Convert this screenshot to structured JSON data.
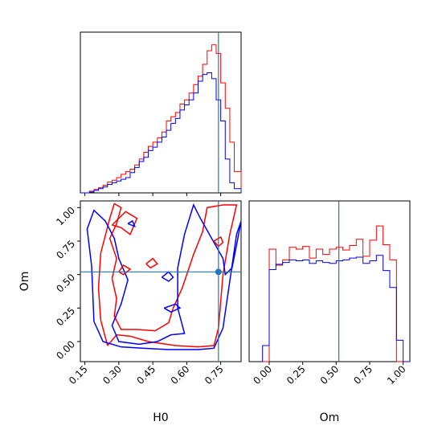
{
  "chart_data": {
    "type": "corner",
    "parameters": [
      "H0",
      "Om"
    ],
    "colors": {
      "red": "#ff0000",
      "blue": "#0000ff",
      "truth": "#1f77b4"
    },
    "truth": {
      "H0": 0.74,
      "Om": 0.52
    },
    "panels": {
      "h0_hist": {
        "type": "histogram",
        "xlim": [
          0.13,
          0.84
        ],
        "bin_edges": [
          0.13,
          0.15,
          0.17,
          0.19,
          0.21,
          0.23,
          0.25,
          0.27,
          0.29,
          0.31,
          0.33,
          0.35,
          0.37,
          0.39,
          0.41,
          0.43,
          0.45,
          0.47,
          0.49,
          0.51,
          0.53,
          0.55,
          0.57,
          0.59,
          0.61,
          0.63,
          0.65,
          0.67,
          0.69,
          0.71,
          0.73,
          0.75,
          0.77,
          0.79,
          0.81,
          0.84
        ],
        "ylim": [
          0,
          190
        ],
        "series": [
          {
            "color": "red",
            "counts": [
              0,
              0,
              2,
              4,
              6,
              9,
              13,
              15,
              18,
              22,
              25,
              28,
              33,
              40,
              48,
              55,
              60,
              65,
              72,
              85,
              90,
              95,
              105,
              110,
              118,
              128,
              138,
              152,
              168,
              175,
              165,
              130,
              100,
              60,
              25
            ]
          },
          {
            "color": "blue",
            "counts": [
              0,
              0,
              1,
              3,
              5,
              7,
              10,
              12,
              14,
              16,
              18,
              24,
              30,
              37,
              42,
              50,
              54,
              60,
              66,
              74,
              82,
              88,
              98,
              104,
              110,
              118,
              132,
              140,
              142,
              135,
              110,
              85,
              40,
              12,
              5
            ]
          }
        ]
      },
      "om_hist": {
        "type": "histogram",
        "xlim": [
          -0.15,
          1.05
        ],
        "bin_edges": [
          -0.05,
          0.0,
          0.05,
          0.1,
          0.15,
          0.2,
          0.25,
          0.3,
          0.35,
          0.4,
          0.45,
          0.5,
          0.55,
          0.6,
          0.65,
          0.7,
          0.75,
          0.8,
          0.85,
          0.9,
          0.95,
          1.0,
          1.05
        ],
        "ylim": [
          0,
          180
        ],
        "series": [
          {
            "color": "red",
            "counts": [
              0,
              126,
              108,
              114,
              128,
              126,
              129,
              116,
              126,
              120,
              126,
              128,
              125,
              130,
              137,
              118,
              136,
              152,
              131,
              114,
              0,
              0
            ]
          },
          {
            "color": "blue",
            "counts": [
              18,
              103,
              109,
              111,
              114,
              113,
              114,
              110,
              113,
              111,
              110,
              113,
              114,
              116,
              117,
              110,
              113,
              119,
              102,
              83,
              24,
              0
            ]
          }
        ]
      },
      "joint": {
        "type": "contour",
        "xlabel": "H0",
        "ylabel": "Om",
        "xlim": [
          0.13,
          0.84
        ],
        "ylim": [
          -0.15,
          1.05
        ],
        "xticks": [
          "0.15",
          "0.30",
          "0.45",
          "0.60",
          "0.75"
        ],
        "yticks": [
          "0.00",
          "0.25",
          "0.50",
          "0.75",
          "1.00"
        ],
        "om_xticks": [
          "0.00",
          "0.25",
          "0.50",
          "0.75",
          "1.00"
        ],
        "om_xlabel": "Om",
        "contours": [
          {
            "color": "red",
            "points": [
              [
                0.25,
                -0.03
              ],
              [
                0.29,
                0.05
              ],
              [
                0.35,
                0.04
              ],
              [
                0.43,
                0.0
              ],
              [
                0.55,
                -0.03
              ],
              [
                0.65,
                -0.04
              ],
              [
                0.72,
                -0.03
              ],
              [
                0.74,
                0.1
              ],
              [
                0.76,
                0.5
              ],
              [
                0.79,
                0.8
              ],
              [
                0.82,
                1.02
              ],
              [
                0.76,
                1.02
              ],
              [
                0.69,
                1.0
              ],
              [
                0.67,
                0.82
              ],
              [
                0.63,
                0.65
              ],
              [
                0.58,
                0.4
              ],
              [
                0.54,
                0.25
              ],
              [
                0.52,
                0.14
              ],
              [
                0.46,
                0.08
              ],
              [
                0.38,
                0.09
              ],
              [
                0.31,
                0.09
              ],
              [
                0.28,
                0.19
              ],
              [
                0.29,
                0.32
              ],
              [
                0.27,
                0.47
              ],
              [
                0.29,
                0.62
              ],
              [
                0.26,
                0.77
              ],
              [
                0.29,
                0.88
              ],
              [
                0.31,
                1.0
              ],
              [
                0.28,
                1.03
              ],
              [
                0.26,
                0.92
              ],
              [
                0.22,
                0.66
              ],
              [
                0.21,
                0.4
              ],
              [
                0.22,
                0.16
              ],
              [
                0.25,
                -0.03
              ]
            ]
          },
          {
            "color": "blue",
            "points": [
              [
                0.19,
                0.15
              ],
              [
                0.23,
                -0.0
              ],
              [
                0.31,
                -0.04
              ],
              [
                0.41,
                -0.05
              ],
              [
                0.52,
                -0.06
              ],
              [
                0.65,
                -0.06
              ],
              [
                0.72,
                -0.05
              ],
              [
                0.76,
                0.1
              ],
              [
                0.79,
                0.45
              ],
              [
                0.82,
                0.8
              ],
              [
                0.84,
                0.9
              ],
              [
                0.82,
                0.72
              ],
              [
                0.8,
                0.55
              ],
              [
                0.77,
                0.5
              ],
              [
                0.76,
                0.62
              ],
              [
                0.7,
                0.8
              ],
              [
                0.66,
                0.92
              ],
              [
                0.63,
                1.02
              ],
              [
                0.59,
                0.8
              ],
              [
                0.56,
                0.55
              ],
              [
                0.56,
                0.25
              ],
              [
                0.59,
                0.06
              ],
              [
                0.53,
                0.05
              ],
              [
                0.47,
                0.0
              ],
              [
                0.39,
                -0.02
              ],
              [
                0.3,
                -0.0
              ],
              [
                0.27,
                0.12
              ],
              [
                0.31,
                0.28
              ],
              [
                0.34,
                0.46
              ],
              [
                0.3,
                0.62
              ],
              [
                0.28,
                0.77
              ],
              [
                0.24,
                0.9
              ],
              [
                0.19,
                0.98
              ],
              [
                0.16,
                0.84
              ],
              [
                0.18,
                0.56
              ],
              [
                0.19,
                0.15
              ]
            ]
          },
          {
            "color": "red",
            "points": [
              [
                0.27,
                0.87
              ],
              [
                0.33,
                0.97
              ],
              [
                0.38,
                0.92
              ],
              [
                0.35,
                0.8
              ],
              [
                0.31,
                0.85
              ],
              [
                0.27,
                0.87
              ]
            ]
          },
          {
            "color": "red",
            "points": [
              [
                0.3,
                0.52
              ],
              [
                0.32,
                0.57
              ],
              [
                0.35,
                0.54
              ],
              [
                0.32,
                0.5
              ],
              [
                0.3,
                0.52
              ]
            ]
          },
          {
            "color": "blue",
            "points": [
              [
                0.34,
                0.88
              ],
              [
                0.36,
                0.9
              ],
              [
                0.37,
                0.86
              ],
              [
                0.34,
                0.88
              ]
            ]
          },
          {
            "color": "blue",
            "points": [
              [
                0.49,
                0.48
              ],
              [
                0.52,
                0.52
              ],
              [
                0.54,
                0.48
              ],
              [
                0.52,
                0.45
              ],
              [
                0.49,
                0.48
              ]
            ]
          },
          {
            "color": "blue",
            "points": [
              [
                0.5,
                0.25
              ],
              [
                0.55,
                0.28
              ],
              [
                0.57,
                0.25
              ],
              [
                0.53,
                0.22
              ],
              [
                0.5,
                0.25
              ]
            ]
          },
          {
            "color": "red",
            "points": [
              [
                0.42,
                0.58
              ],
              [
                0.45,
                0.62
              ],
              [
                0.47,
                0.58
              ],
              [
                0.44,
                0.55
              ],
              [
                0.42,
                0.58
              ]
            ]
          },
          {
            "color": "red",
            "points": [
              [
                0.72,
                0.75
              ],
              [
                0.75,
                0.78
              ],
              [
                0.76,
                0.74
              ],
              [
                0.74,
                0.71
              ],
              [
                0.72,
                0.75
              ]
            ]
          }
        ]
      }
    }
  }
}
